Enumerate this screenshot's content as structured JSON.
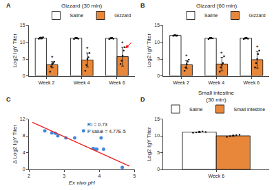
{
  "chart_data": [
    {
      "type": "bar",
      "panel": "A",
      "title": "Gizzard (30 min)",
      "categories": [
        "Week 2",
        "Week 4",
        "Week 6"
      ],
      "ylabel": "Log2 IgY Titer",
      "ylim": [
        0,
        15
      ],
      "yticks": [
        0,
        5,
        10,
        15
      ],
      "grid": false,
      "legend": "upper right",
      "series": [
        {
          "name": "Saline",
          "color": "#FFFFFF",
          "values": [
            11.2,
            11.2,
            11.2
          ],
          "errors": [
            0.25,
            0.2,
            0.2
          ],
          "points": [
            [
              11.0,
              11.3,
              11.4,
              11.1,
              11.5
            ],
            [
              10.9,
              11.2,
              11.3,
              11.0
            ],
            [
              10.9,
              11.1,
              11.3,
              11.0
            ]
          ]
        },
        {
          "name": "Gizzard",
          "color": "#E8873A",
          "values": [
            3.3,
            4.7,
            5.7
          ],
          "errors": [
            0.9,
            2.1,
            2.8
          ],
          "points": [
            [
              1.2,
              2.8,
              3.5,
              3.8,
              4.2
            ],
            [
              1.5,
              3.2,
              5.0,
              5.5,
              6.8
            ],
            [
              3.5,
              4.5,
              6.0,
              7.5,
              8.5
            ]
          ]
        }
      ],
      "annotations": [
        {
          "text": "*",
          "category": "Week 2",
          "series": "Gizzard"
        },
        {
          "text": "*",
          "category": "Week 4",
          "series": "Gizzard"
        },
        {
          "text": "*",
          "category": "Week 6",
          "series": "Gizzard"
        },
        {
          "category": "Week 6",
          "series": "Gizzard",
          "marker": "arrow",
          "color": "red"
        }
      ]
    },
    {
      "type": "bar",
      "panel": "B",
      "title": "Gizzard (60 min)",
      "categories": [
        "Week 2",
        "Week 4",
        "Week 6"
      ],
      "ylabel": "Log2 IgY Titer",
      "ylim": [
        0,
        15
      ],
      "yticks": [
        0,
        5,
        10,
        15
      ],
      "grid": false,
      "legend": "upper right",
      "series": [
        {
          "name": "Saline",
          "color": "#FFFFFF",
          "values": [
            12.0,
            11.2,
            11.2
          ],
          "errors": [
            0.15,
            0.2,
            0.2
          ],
          "points": [
            [
              11.9,
              12.1,
              12.1,
              11.9,
              12.0
            ],
            [
              10.9,
              11.2,
              11.3,
              11.1
            ],
            [
              10.9,
              11.1,
              11.3,
              11.0
            ]
          ]
        },
        {
          "name": "Gizzard",
          "color": "#E8873A",
          "values": [
            3.3,
            3.5,
            4.8
          ],
          "errors": [
            1.2,
            2.0,
            2.5
          ],
          "points": [
            [
              1.5,
              2.5,
              3.5,
              4.2,
              4.8
            ],
            [
              1.2,
              2.5,
              3.2,
              3.8,
              5.8
            ],
            [
              2.5,
              3.8,
              5.0,
              6.5,
              7.5
            ]
          ]
        }
      ],
      "annotations": [
        {
          "text": "*",
          "category": "Week 2",
          "series": "Gizzard"
        },
        {
          "text": "*",
          "category": "Week 4",
          "series": "Gizzard"
        },
        {
          "text": "*",
          "category": "Week 6",
          "series": "Gizzard"
        }
      ]
    },
    {
      "type": "scatter",
      "panel": "C",
      "xlabel": "Ex vivo pH",
      "ylabel": "Δ Log2 IgY Titer",
      "xlim": [
        2,
        5
      ],
      "xticks": [
        2,
        3,
        4,
        5
      ],
      "ylim": [
        0,
        12
      ],
      "yticks": [
        0,
        4,
        8,
        12
      ],
      "grid": false,
      "series": [
        {
          "type": "scatter",
          "color": "#4488DD",
          "x": [
            2.45,
            2.65,
            2.75,
            2.82,
            3.05,
            3.3,
            3.55,
            3.82,
            3.88,
            3.93,
            4.05,
            4.12,
            4.65
          ],
          "values": [
            9.2,
            8.7,
            8.6,
            8.0,
            7.5,
            7.5,
            9.2,
            5.0,
            4.8,
            4.8,
            7.5,
            4.8,
            0.5
          ]
        },
        {
          "type": "line",
          "color": "#EE2222",
          "x": [
            2.1,
            4.85
          ],
          "values": [
            11.2,
            0.8
          ]
        }
      ],
      "annotations": [
        {
          "text": "R² = 0.73"
        },
        {
          "text": "P value = 4.77E-5"
        }
      ]
    },
    {
      "type": "bar",
      "panel": "D",
      "title": "Small intestine\n(30 min)",
      "categories": [
        "Week 6"
      ],
      "ylabel": "Log2 IgY Titer",
      "ylim": [
        0,
        15
      ],
      "yticks": [
        0,
        5,
        10,
        15
      ],
      "grid": false,
      "legend": "upper right",
      "series": [
        {
          "name": "Saline",
          "color": "#FFFFFF",
          "values": [
            11.1
          ],
          "errors": [
            0.15
          ],
          "points": [
            [
              10.9,
              11.0,
              11.2,
              11.3,
              11.1
            ]
          ]
        },
        {
          "name": "Small intestine",
          "color": "#E8873A",
          "values": [
            10.0
          ],
          "errors": [
            0.15
          ],
          "points": [
            [
              9.7,
              9.9,
              10.1,
              10.2,
              10.3
            ]
          ]
        }
      ]
    }
  ]
}
